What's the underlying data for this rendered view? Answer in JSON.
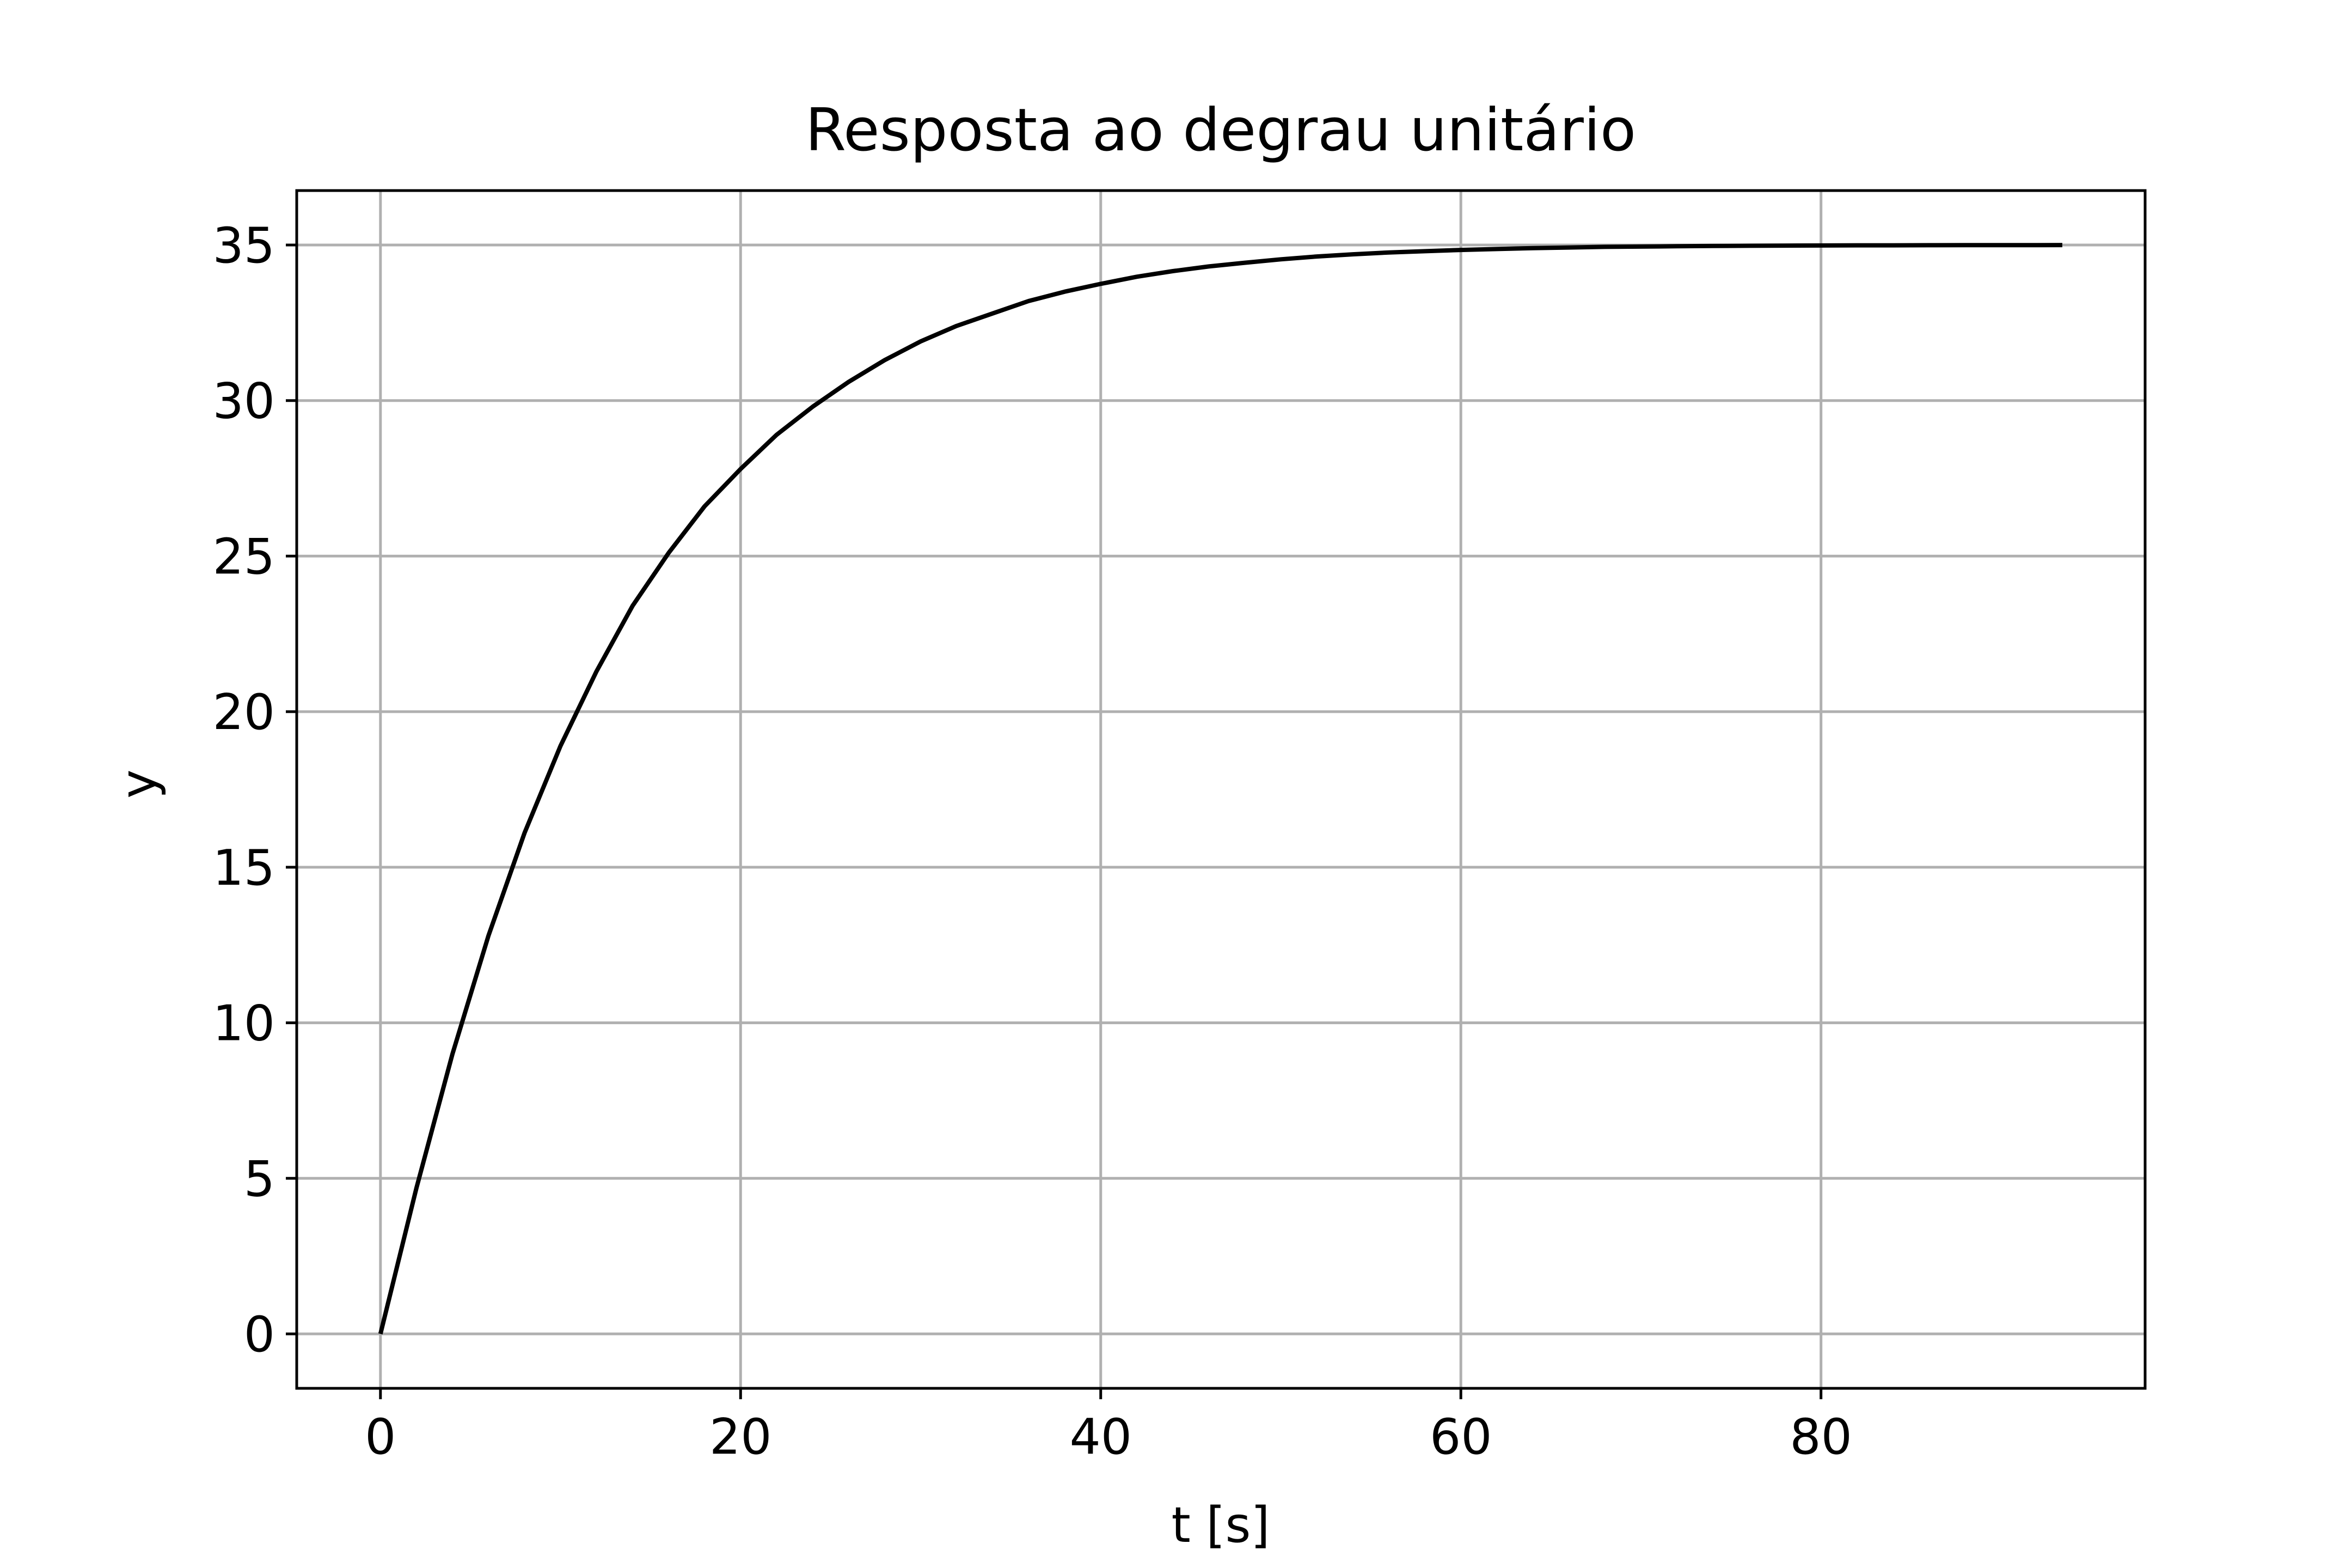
{
  "chart_data": {
    "type": "line",
    "title": "Resposta ao degrau unitário",
    "xlabel": "t [s]",
    "ylabel": "y",
    "xlim": [
      -4.65,
      98.0
    ],
    "ylim": [
      -1.75,
      36.75
    ],
    "xticks": [
      0,
      20,
      40,
      60,
      80
    ],
    "yticks": [
      0,
      5,
      10,
      15,
      20,
      25,
      30,
      35
    ],
    "xtick_labels": [
      "0",
      "20",
      "40",
      "60",
      "80"
    ],
    "ytick_labels": [
      "0",
      "5",
      "10",
      "15",
      "20",
      "25",
      "30",
      "35"
    ],
    "grid": true,
    "legend": false,
    "series": [
      {
        "color": "#000000",
        "x": [
          0,
          2,
          4,
          6,
          8,
          10,
          12,
          14,
          16,
          18,
          20,
          22,
          24,
          26,
          28,
          30,
          32,
          34,
          36,
          38,
          40,
          42,
          44,
          46,
          48,
          50,
          52,
          54,
          56,
          58,
          60,
          62,
          64,
          66,
          68,
          70,
          72,
          74,
          76,
          78,
          80,
          82,
          84,
          86,
          88,
          90,
          92,
          93.4
        ],
        "y": [
          0.0,
          4.69,
          9.0,
          12.8,
          16.1,
          18.9,
          21.3,
          23.4,
          25.1,
          26.6,
          27.8,
          28.9,
          29.8,
          30.6,
          31.3,
          31.9,
          32.4,
          32.8,
          33.2,
          33.5,
          33.75,
          33.98,
          34.16,
          34.31,
          34.43,
          34.54,
          34.63,
          34.7,
          34.76,
          34.8,
          34.84,
          34.87,
          34.9,
          34.92,
          34.94,
          34.95,
          34.96,
          34.97,
          34.975,
          34.98,
          34.985,
          34.99,
          34.99,
          34.993,
          34.995,
          34.996,
          34.997,
          34.998
        ]
      }
    ],
    "colors": {
      "line": "#000000",
      "grid": "#b0b0b0",
      "frame": "#000000",
      "background": "#ffffff"
    }
  }
}
